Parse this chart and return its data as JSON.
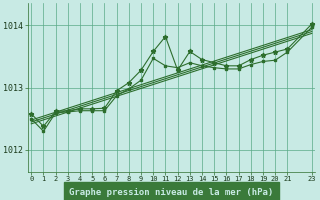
{
  "xlabel": "Graphe pression niveau de la mer (hPa)",
  "xlim": [
    -0.3,
    23.3
  ],
  "ylim": [
    1011.65,
    1014.35
  ],
  "yticks": [
    1012,
    1013,
    1014
  ],
  "xticks": [
    0,
    1,
    2,
    3,
    4,
    5,
    6,
    7,
    8,
    9,
    10,
    11,
    12,
    13,
    14,
    15,
    16,
    17,
    18,
    19,
    20,
    21,
    23
  ],
  "bg_color": "#c8eae4",
  "grid_color": "#5aaa88",
  "line_color": "#2d6e2d",
  "xlabel_bg": "#3a7a3a",
  "xlabel_fg": "#c8eae4",
  "series_main_x": [
    0,
    1,
    2,
    3,
    4,
    5,
    6,
    7,
    8,
    9,
    10,
    11,
    12,
    13,
    14,
    15,
    16,
    17,
    18,
    19,
    20,
    21,
    23
  ],
  "series_main_y": [
    1012.58,
    1012.38,
    1012.62,
    1012.63,
    1012.66,
    1012.66,
    1012.67,
    1012.95,
    1013.08,
    1013.28,
    1013.58,
    1013.82,
    1013.28,
    1013.58,
    1013.45,
    1013.4,
    1013.35,
    1013.35,
    1013.45,
    1013.52,
    1013.57,
    1013.62,
    1014.02
  ],
  "series_smooth_x": [
    0,
    1,
    2,
    3,
    4,
    5,
    6,
    7,
    8,
    9,
    10,
    11,
    12,
    13,
    14,
    15,
    16,
    17,
    18,
    19,
    20,
    21,
    23
  ],
  "series_smooth_y": [
    1012.5,
    1012.3,
    1012.6,
    1012.61,
    1012.63,
    1012.63,
    1012.63,
    1012.87,
    1012.98,
    1013.12,
    1013.47,
    1013.35,
    1013.32,
    1013.4,
    1013.35,
    1013.32,
    1013.3,
    1013.3,
    1013.37,
    1013.42,
    1013.44,
    1013.57,
    1013.97
  ],
  "series_trend1_x": [
    0,
    23
  ],
  "series_trend1_y": [
    1012.48,
    1013.93
  ],
  "series_trend2_x": [
    0,
    23
  ],
  "series_trend2_y": [
    1012.45,
    1013.9
  ],
  "series_trend3_x": [
    0,
    23
  ],
  "series_trend3_y": [
    1012.42,
    1013.87
  ]
}
